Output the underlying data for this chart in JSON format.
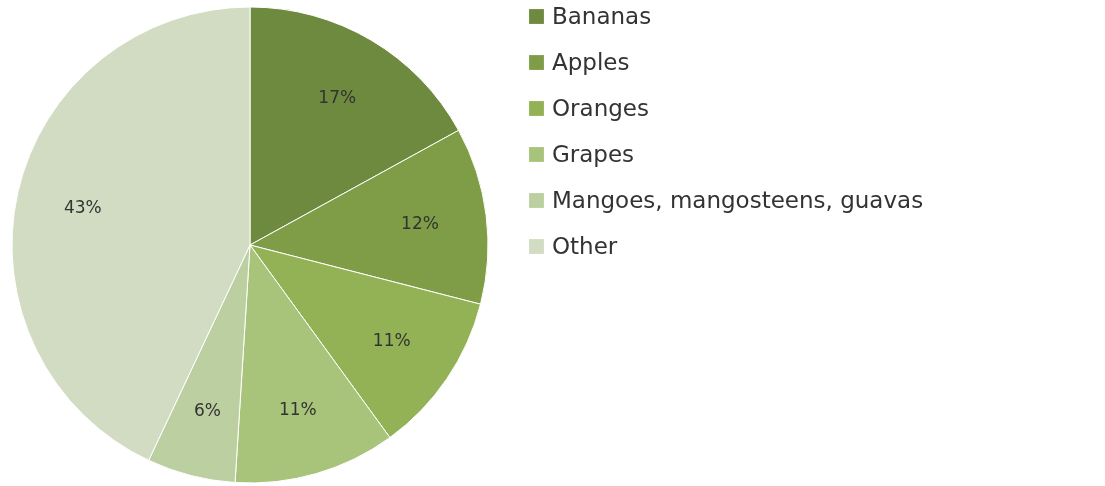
{
  "chart_data": {
    "type": "pie",
    "categories": [
      "Bananas",
      "Apples",
      "Oranges",
      "Grapes",
      "Mangoes, mangosteens, guavas",
      "Other"
    ],
    "values": [
      17,
      12,
      11,
      11,
      6,
      43
    ],
    "colors": [
      "#6e8a3e",
      "#7f9c47",
      "#93b256",
      "#a8c47a",
      "#bccfa0",
      "#d2dcc2"
    ],
    "value_labels": [
      "17%",
      "12%",
      "11%",
      "11%",
      "6%",
      "43%"
    ],
    "legend": "right"
  }
}
